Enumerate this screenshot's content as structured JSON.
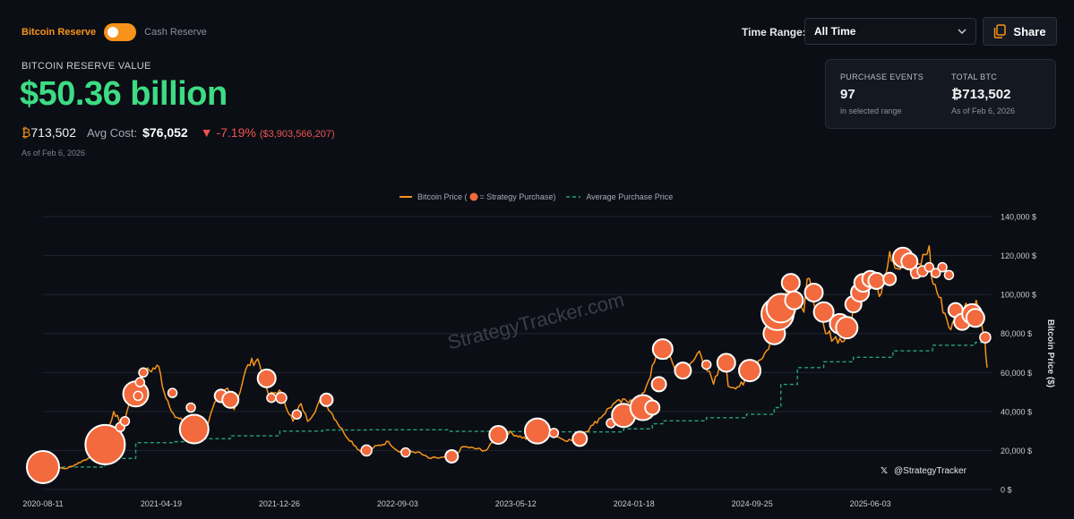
{
  "toggle": {
    "left_label": "Bitcoin Reserve",
    "right_label": "Cash Reserve"
  },
  "reserve": {
    "label": "BITCOIN RESERVE VALUE",
    "value": "$50.36 billion",
    "btc_symbol": "₿",
    "btc_amount": "713,502",
    "avg_cost_label": "Avg Cost:",
    "avg_cost": "$76,052",
    "change_pct": "▼ -7.19%",
    "change_abs": "($3,903,566,207)",
    "as_of": "As of Feb 6, 2026"
  },
  "time_range": {
    "label": "Time Range:",
    "selected": "All Time"
  },
  "share": {
    "label": "Share"
  },
  "card": {
    "events_title": "PURCHASE EVENTS",
    "events_value": "97",
    "events_sub": "in selected range",
    "total_title": "TOTAL BTC",
    "total_value": "₿713,502",
    "total_sub": "As of Feb 6, 2026"
  },
  "legend": {
    "price": "Bitcoin Price (",
    "purchase": " = Strategy Purchase)",
    "avg": "Average Purchase Price"
  },
  "watermark": "StrategyTracker.com",
  "handle": "@StrategyTracker",
  "colors": {
    "accent": "#f7931a",
    "positive": "#3ddc84",
    "negative": "#ef5350",
    "avg_line": "#26a17b",
    "bubble": "#f26a3d"
  },
  "chart_data": {
    "type": "line",
    "ylabel": "Bitcoin Price ($)",
    "ylim": [
      0,
      140000
    ],
    "y_ticks": [
      0,
      20000,
      40000,
      60000,
      80000,
      100000,
      120000,
      140000
    ],
    "y_tick_labels": [
      "0 $",
      "20,000 $",
      "40,000 $",
      "60,000 $",
      "80,000 $",
      "100,000 $",
      "120,000 $",
      "140,000 $"
    ],
    "x_tick_labels": [
      "2020-08-11",
      "2021-04-19",
      "2021-12-26",
      "2022-09-03",
      "2023-05-12",
      "2024-01-18",
      "2024-09-25",
      "2025-06-03"
    ],
    "grid": true,
    "legend_position": "top-center",
    "series": [
      {
        "name": "Bitcoin Price",
        "points": [
          [
            "2020-08-11",
            11500
          ],
          [
            "2020-10-01",
            10800
          ],
          [
            "2020-11-15",
            16000
          ],
          [
            "2020-12-20",
            23000
          ],
          [
            "2021-01-08",
            40000
          ],
          [
            "2021-01-28",
            32000
          ],
          [
            "2021-02-20",
            55000
          ],
          [
            "2021-03-13",
            60000
          ],
          [
            "2021-04-14",
            63000
          ],
          [
            "2021-04-25",
            50000
          ],
          [
            "2021-05-19",
            37000
          ],
          [
            "2021-06-20",
            33000
          ],
          [
            "2021-07-20",
            30000
          ],
          [
            "2021-08-15",
            46000
          ],
          [
            "2021-09-07",
            52000
          ],
          [
            "2021-09-21",
            41000
          ],
          [
            "2021-10-20",
            64000
          ],
          [
            "2021-11-10",
            67000
          ],
          [
            "2021-12-04",
            48000
          ],
          [
            "2021-12-26",
            51000
          ],
          [
            "2022-01-24",
            35000
          ],
          [
            "2022-02-10",
            44000
          ],
          [
            "2022-02-24",
            35000
          ],
          [
            "2022-03-28",
            47000
          ],
          [
            "2022-05-12",
            29000
          ],
          [
            "2022-06-18",
            19000
          ],
          [
            "2022-08-15",
            24500
          ],
          [
            "2022-09-03",
            19800
          ],
          [
            "2022-10-15",
            19200
          ],
          [
            "2022-11-09",
            16000
          ],
          [
            "2022-12-31",
            16500
          ],
          [
            "2023-01-20",
            22000
          ],
          [
            "2023-03-10",
            20000
          ],
          [
            "2023-04-14",
            30500
          ],
          [
            "2023-06-15",
            25000
          ],
          [
            "2023-07-13",
            31000
          ],
          [
            "2023-08-17",
            26000
          ],
          [
            "2023-09-11",
            25000
          ],
          [
            "2023-10-23",
            33000
          ],
          [
            "2023-12-05",
            44000
          ],
          [
            "2024-01-11",
            46000
          ],
          [
            "2024-01-23",
            39500
          ],
          [
            "2024-03-14",
            73000
          ],
          [
            "2024-05-01",
            57000
          ],
          [
            "2024-06-05",
            71000
          ],
          [
            "2024-07-05",
            54000
          ],
          [
            "2024-07-29",
            68000
          ],
          [
            "2024-08-05",
            53000
          ],
          [
            "2024-09-06",
            53500
          ],
          [
            "2024-09-30",
            64000
          ],
          [
            "2024-10-30",
            72000
          ],
          [
            "2024-11-12",
            90000
          ],
          [
            "2024-12-17",
            106000
          ],
          [
            "2025-01-13",
            91000
          ],
          [
            "2025-01-20",
            108000
          ],
          [
            "2025-02-28",
            80000
          ],
          [
            "2025-04-08",
            76000
          ],
          [
            "2025-05-22",
            111000
          ],
          [
            "2025-06-22",
            99000
          ],
          [
            "2025-07-14",
            122000
          ],
          [
            "2025-08-02",
            113000
          ],
          [
            "2025-08-14",
            123000
          ],
          [
            "2025-09-01",
            108000
          ],
          [
            "2025-10-06",
            125000
          ],
          [
            "2025-10-10",
            110000
          ],
          [
            "2025-11-21",
            82000
          ],
          [
            "2025-12-10",
            92000
          ],
          [
            "2026-01-14",
            97000
          ],
          [
            "2026-02-01",
            78000
          ],
          [
            "2026-02-06",
            62500
          ]
        ]
      },
      {
        "name": "Average Purchase Price",
        "points": [
          [
            "2020-08-11",
            11500
          ],
          [
            "2020-12-21",
            15900
          ],
          [
            "2021-02-24",
            24000
          ],
          [
            "2021-05-13",
            24500
          ],
          [
            "2021-07-01",
            26000
          ],
          [
            "2021-09-13",
            27500
          ],
          [
            "2021-12-27",
            29900
          ],
          [
            "2022-03-28",
            30500
          ],
          [
            "2022-06-28",
            30600
          ],
          [
            "2022-12-24",
            29800
          ],
          [
            "2023-03-27",
            29700
          ],
          [
            "2023-06-28",
            29600
          ],
          [
            "2023-09-25",
            29500
          ],
          [
            "2023-12-27",
            31100
          ],
          [
            "2024-02-26",
            33700
          ],
          [
            "2024-03-19",
            35200
          ],
          [
            "2024-06-20",
            36800
          ],
          [
            "2024-09-13",
            38600
          ],
          [
            "2024-11-11",
            42000
          ],
          [
            "2024-11-25",
            53900
          ],
          [
            "2024-12-30",
            62500
          ],
          [
            "2025-02-24",
            65500
          ],
          [
            "2025-04-28",
            67800
          ],
          [
            "2025-07-21",
            71100
          ],
          [
            "2025-10-13",
            74000
          ],
          [
            "2026-01-12",
            75400
          ],
          [
            "2026-02-06",
            76052
          ]
        ]
      },
      {
        "name": "Strategy Purchase",
        "points": [
          [
            "2020-08-11",
            11500,
            18
          ],
          [
            "2020-12-21",
            23000,
            22
          ],
          [
            "2021-01-22",
            32000,
            5
          ],
          [
            "2021-02-01",
            35000,
            5
          ],
          [
            "2021-02-24",
            49000,
            14
          ],
          [
            "2021-03-01",
            48000,
            5
          ],
          [
            "2021-03-05",
            55000,
            5
          ],
          [
            "2021-03-12",
            60000,
            5
          ],
          [
            "2021-05-13",
            49500,
            5
          ],
          [
            "2021-06-21",
            42000,
            5
          ],
          [
            "2021-06-28",
            31000,
            16
          ],
          [
            "2021-08-24",
            48000,
            7
          ],
          [
            "2021-09-13",
            46000,
            9
          ],
          [
            "2021-11-29",
            57000,
            10
          ],
          [
            "2021-12-09",
            47000,
            5
          ],
          [
            "2021-12-30",
            47000,
            6
          ],
          [
            "2022-02-01",
            38500,
            5
          ],
          [
            "2022-04-05",
            46000,
            7
          ],
          [
            "2022-06-29",
            20000,
            6
          ],
          [
            "2022-09-20",
            19000,
            5
          ],
          [
            "2022-12-27",
            17000,
            7
          ],
          [
            "2023-03-27",
            27000,
            5
          ],
          [
            "2023-04-05",
            28000,
            10
          ],
          [
            "2023-06-27",
            30000,
            14
          ],
          [
            "2023-08-01",
            29000,
            5
          ],
          [
            "2023-09-25",
            26000,
            8
          ],
          [
            "2023-11-30",
            34000,
            5
          ],
          [
            "2023-12-27",
            38000,
            13
          ],
          [
            "2024-02-06",
            42000,
            14
          ],
          [
            "2024-02-26",
            42000,
            8
          ],
          [
            "2024-03-11",
            54000,
            8
          ],
          [
            "2024-03-19",
            72000,
            11
          ],
          [
            "2024-05-01",
            61000,
            9
          ],
          [
            "2024-06-20",
            64000,
            5
          ],
          [
            "2024-08-01",
            65000,
            10
          ],
          [
            "2024-09-13",
            64000,
            5
          ],
          [
            "2024-09-20",
            61000,
            12
          ],
          [
            "2024-11-11",
            80000,
            12
          ],
          [
            "2024-11-18",
            90000,
            18
          ],
          [
            "2024-11-25",
            93000,
            16
          ],
          [
            "2024-12-16",
            106000,
            10
          ],
          [
            "2024-12-23",
            97000,
            10
          ],
          [
            "2025-02-03",
            101000,
            10
          ],
          [
            "2025-02-24",
            91000,
            11
          ],
          [
            "2025-03-30",
            85000,
            11
          ],
          [
            "2025-04-14",
            83000,
            12
          ],
          [
            "2025-04-28",
            95000,
            9
          ],
          [
            "2025-05-12",
            101000,
            10
          ],
          [
            "2025-05-19",
            106000,
            10
          ],
          [
            "2025-06-03",
            108000,
            9
          ],
          [
            "2025-06-16",
            107000,
            9
          ],
          [
            "2025-07-14",
            108000,
            7
          ],
          [
            "2025-08-11",
            119000,
            11
          ],
          [
            "2025-08-25",
            117000,
            9
          ],
          [
            "2025-09-08",
            111000,
            6
          ],
          [
            "2025-09-22",
            112000,
            6
          ],
          [
            "2025-10-06",
            114000,
            5
          ],
          [
            "2025-10-20",
            111000,
            5
          ],
          [
            "2025-11-03",
            114000,
            5
          ],
          [
            "2025-11-17",
            110000,
            5
          ],
          [
            "2025-12-01",
            92000,
            8
          ],
          [
            "2025-12-15",
            86000,
            9
          ],
          [
            "2026-01-05",
            90000,
            11
          ],
          [
            "2026-01-12",
            88000,
            10
          ],
          [
            "2026-02-02",
            78000,
            6
          ]
        ]
      }
    ]
  }
}
